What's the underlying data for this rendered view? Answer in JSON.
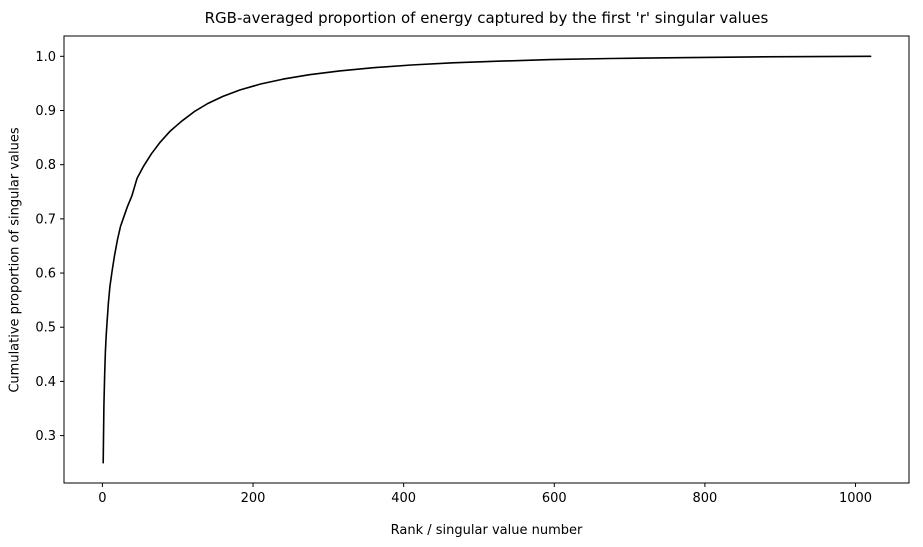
{
  "figure": {
    "background": "#ffffff",
    "axes_color": "#000000"
  },
  "chart_data": {
    "type": "line",
    "title": "RGB-averaged proportion of energy captured by the first 'r' singular values",
    "xlabel": "Rank / singular value number",
    "ylabel": "Cumulative proportion of singular values",
    "grid": false,
    "legend": "none",
    "line_color": "#000000",
    "line_width": 1.6,
    "xlim": [
      -51,
      1071
    ],
    "ylim": [
      0.2125,
      1.0375
    ],
    "x_ticks": [
      0,
      200,
      400,
      600,
      800,
      1000
    ],
    "y_ticks": [
      0.3,
      0.4,
      0.5,
      0.6,
      0.7,
      0.8,
      0.9,
      1.0
    ],
    "x": [
      1,
      2,
      3,
      4,
      5,
      6,
      8,
      10,
      13,
      16,
      20,
      24,
      28,
      33,
      39,
      46,
      55,
      65,
      77,
      90,
      105,
      122,
      140,
      160,
      183,
      210,
      240,
      275,
      315,
      360,
      410,
      465,
      525,
      595,
      675,
      765,
      865,
      1020
    ],
    "y": [
      0.25,
      0.355,
      0.415,
      0.455,
      0.485,
      0.505,
      0.545,
      0.575,
      0.605,
      0.632,
      0.662,
      0.686,
      0.702,
      0.722,
      0.742,
      0.775,
      0.798,
      0.82,
      0.842,
      0.862,
      0.88,
      0.898,
      0.913,
      0.926,
      0.938,
      0.949,
      0.958,
      0.966,
      0.973,
      0.979,
      0.984,
      0.988,
      0.991,
      0.994,
      0.996,
      0.9975,
      0.999,
      1.0
    ]
  }
}
